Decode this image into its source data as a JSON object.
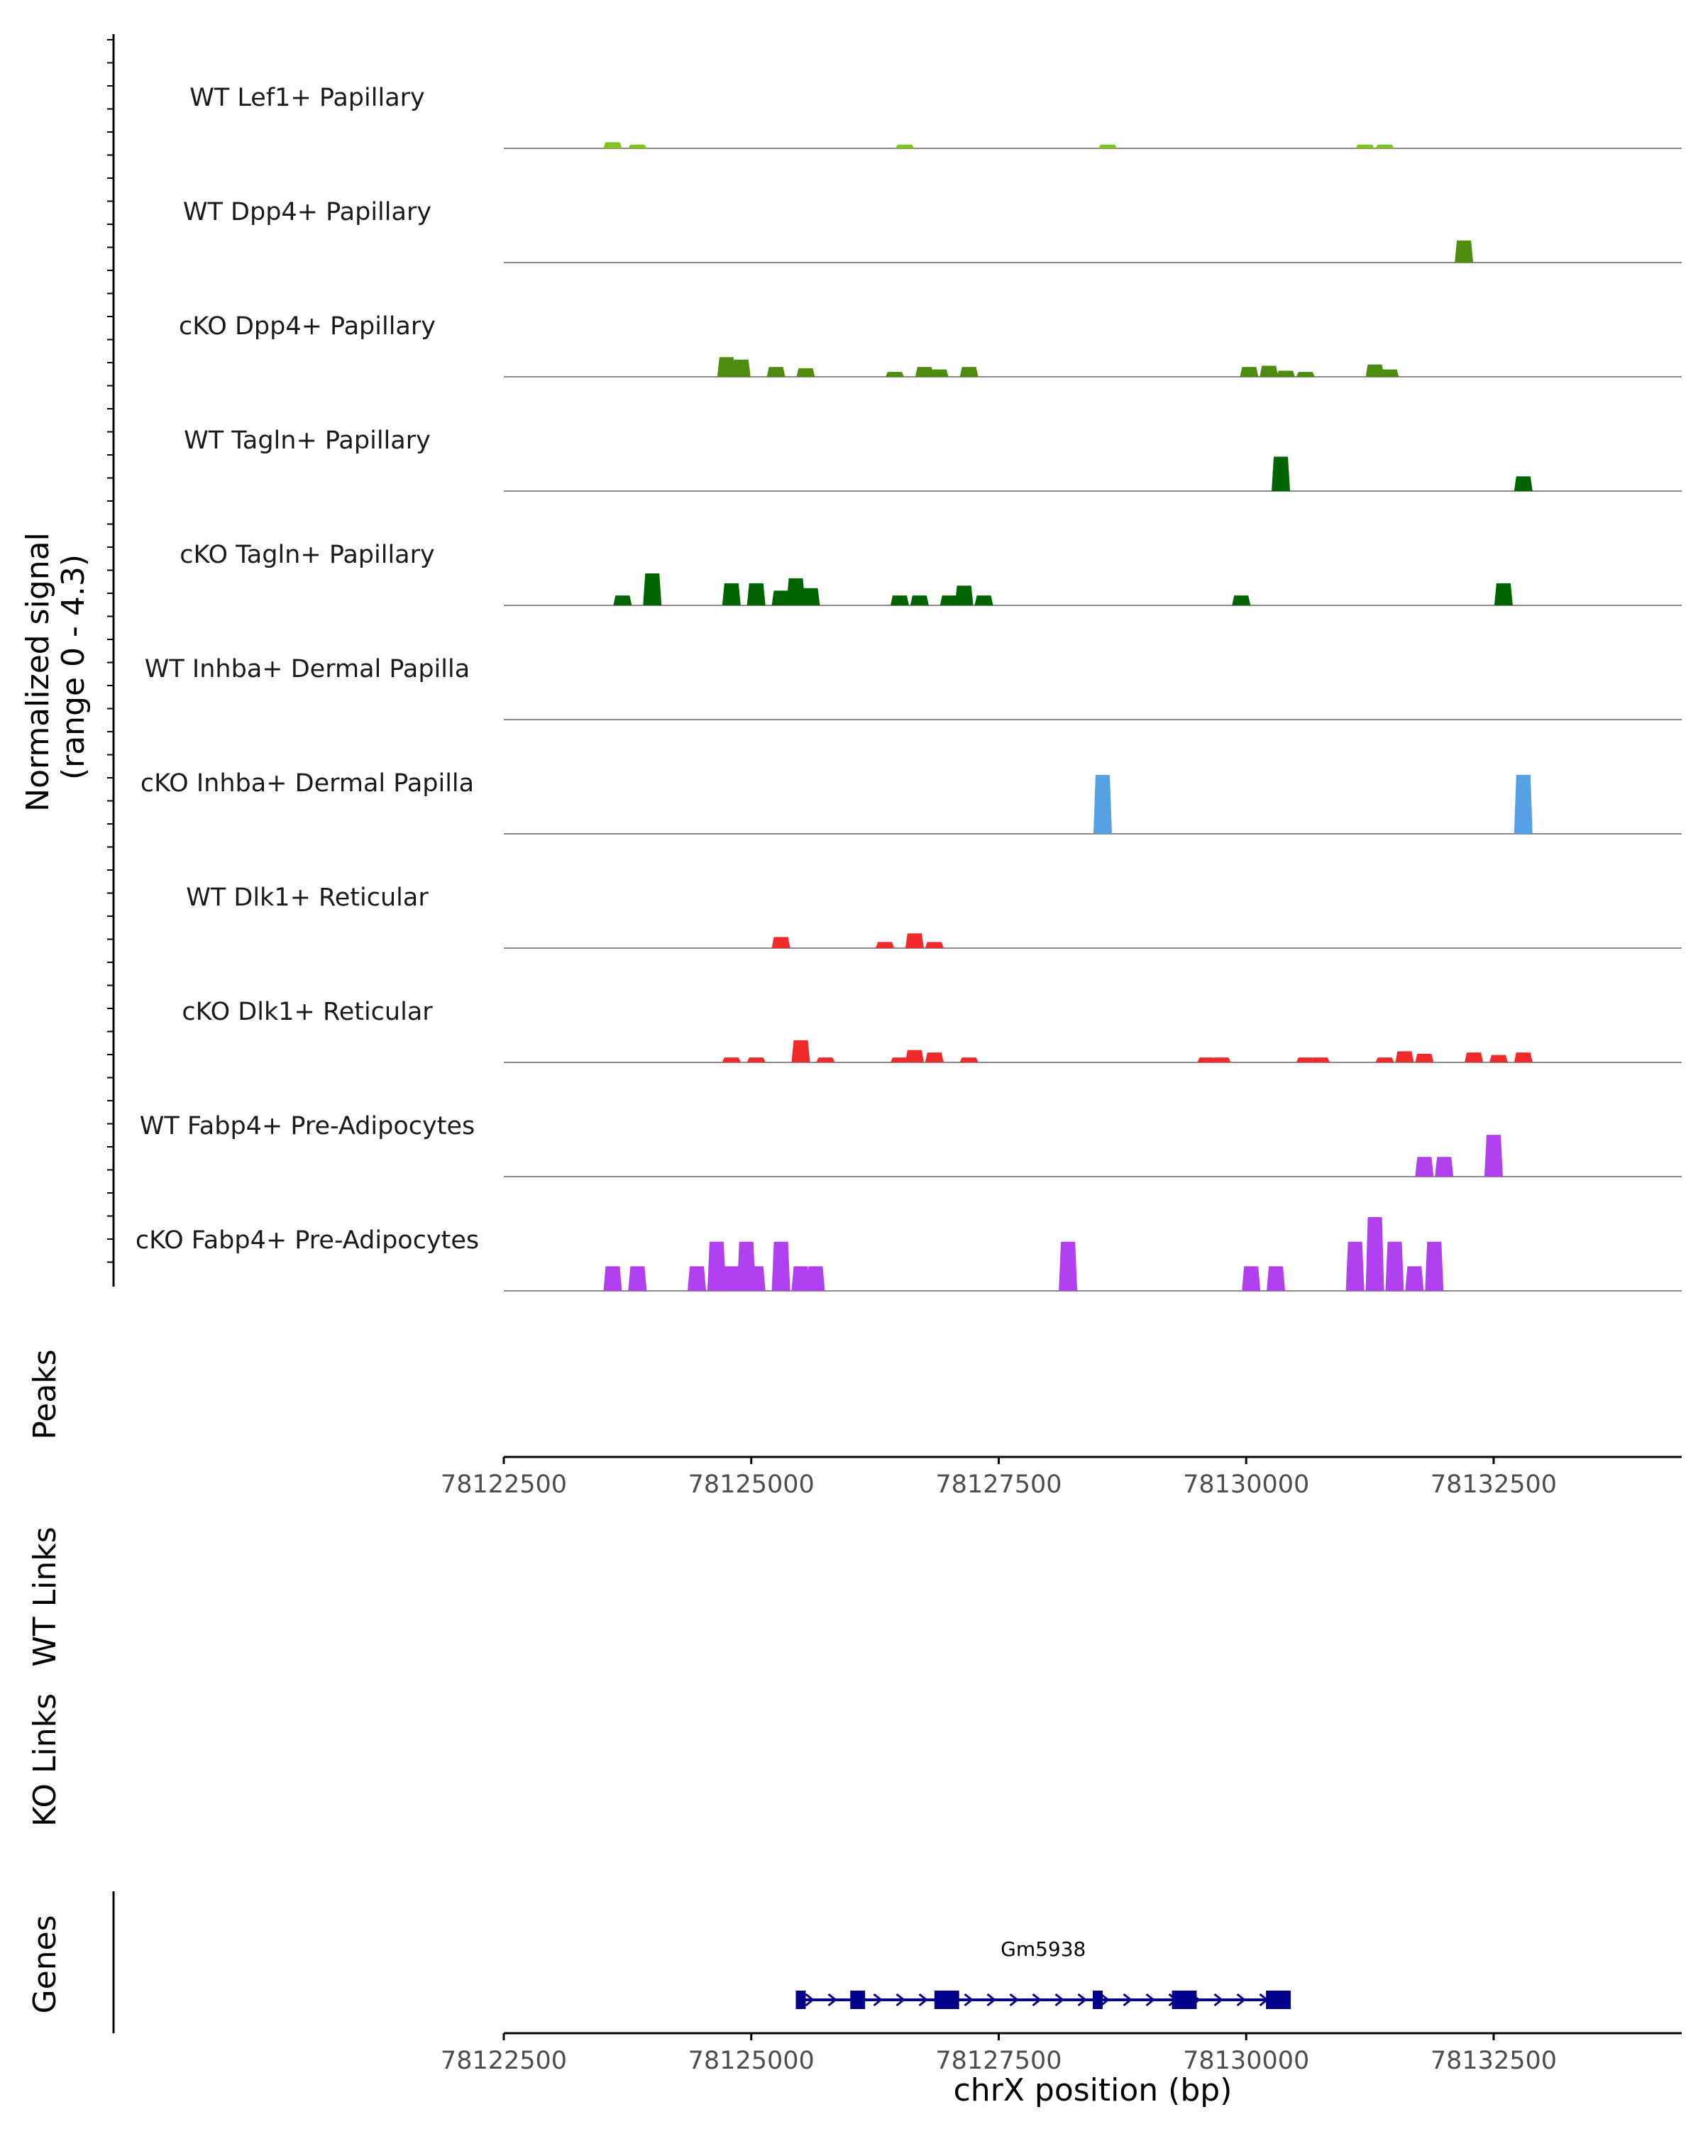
{
  "chart_data": {
    "type": "area",
    "ylabel": "Normalized signal\n(range 0 - 4.3)",
    "y_range": [
      0,
      4.3
    ],
    "xlabel": "chrX position (bp)",
    "x_range": [
      78122500,
      78134400
    ],
    "x_ticks": [
      78122500,
      78125000,
      78127500,
      78130000,
      78132500
    ],
    "x_tick_labels": [
      "78122500",
      "78125000",
      "78127500",
      "78130000",
      "78132500"
    ],
    "tracks": [
      {
        "name": "WT Lef1+ Papillary",
        "color": "#7cc51a",
        "peaks": [
          [
            78123600,
            0.25
          ],
          [
            78123850,
            0.15
          ],
          [
            78126550,
            0.15
          ],
          [
            78128600,
            0.15
          ],
          [
            78131200,
            0.15
          ],
          [
            78131400,
            0.15
          ]
        ]
      },
      {
        "name": "WT Dpp4+ Papillary",
        "color": "#4c8c0f",
        "peaks": [
          [
            78132200,
            0.9
          ]
        ]
      },
      {
        "name": "cKO Dpp4+ Papillary",
        "color": "#4c8c0f",
        "peaks": [
          [
            78124750,
            0.8
          ],
          [
            78124900,
            0.7
          ],
          [
            78125250,
            0.4
          ],
          [
            78125550,
            0.35
          ],
          [
            78126450,
            0.2
          ],
          [
            78126750,
            0.4
          ],
          [
            78126900,
            0.3
          ],
          [
            78127200,
            0.4
          ],
          [
            78130030,
            0.4
          ],
          [
            78130230,
            0.45
          ],
          [
            78130400,
            0.25
          ],
          [
            78130600,
            0.2
          ],
          [
            78131300,
            0.5
          ],
          [
            78131450,
            0.3
          ]
        ]
      },
      {
        "name": "WT Tagln+ Papillary",
        "color": "#006400",
        "peaks": [
          [
            78130350,
            1.4
          ],
          [
            78132800,
            0.6
          ]
        ]
      },
      {
        "name": "cKO Tagln+ Papillary",
        "color": "#006400",
        "peaks": [
          [
            78123700,
            0.4
          ],
          [
            78124000,
            1.3
          ],
          [
            78124800,
            0.9
          ],
          [
            78125050,
            0.9
          ],
          [
            78125300,
            0.6
          ],
          [
            78125450,
            1.1
          ],
          [
            78125600,
            0.7
          ],
          [
            78126500,
            0.4
          ],
          [
            78126700,
            0.4
          ],
          [
            78127000,
            0.4
          ],
          [
            78127150,
            0.8
          ],
          [
            78127350,
            0.4
          ],
          [
            78129950,
            0.4
          ],
          [
            78132600,
            0.9
          ]
        ]
      },
      {
        "name": "WT Inhba+ Dermal Papilla",
        "color": "#56a0e6",
        "peaks": []
      },
      {
        "name": "cKO Inhba+ Dermal Papilla",
        "color": "#56a0e6",
        "peaks": [
          [
            78128550,
            2.4
          ],
          [
            78132800,
            2.4
          ]
        ]
      },
      {
        "name": "WT Dlk1+ Reticular",
        "color": "#f02a2a",
        "peaks": [
          [
            78125300,
            0.45
          ],
          [
            78126350,
            0.25
          ],
          [
            78126650,
            0.6
          ],
          [
            78126850,
            0.25
          ]
        ]
      },
      {
        "name": "cKO Dlk1+ Reticular",
        "color": "#f02a2a",
        "peaks": [
          [
            78124800,
            0.2
          ],
          [
            78125050,
            0.2
          ],
          [
            78125500,
            0.9
          ],
          [
            78125750,
            0.2
          ],
          [
            78126500,
            0.2
          ],
          [
            78126650,
            0.5
          ],
          [
            78126850,
            0.4
          ],
          [
            78127200,
            0.2
          ],
          [
            78129600,
            0.2
          ],
          [
            78129750,
            0.2
          ],
          [
            78130600,
            0.2
          ],
          [
            78130750,
            0.2
          ],
          [
            78131400,
            0.2
          ],
          [
            78131600,
            0.45
          ],
          [
            78131800,
            0.35
          ],
          [
            78132300,
            0.4
          ],
          [
            78132550,
            0.3
          ],
          [
            78132800,
            0.4
          ]
        ]
      },
      {
        "name": "WT Fabp4+ Pre-Adipocytes",
        "color": "#b040f0",
        "peaks": [
          [
            78131800,
            0.8
          ],
          [
            78132000,
            0.8
          ],
          [
            78132500,
            1.7
          ]
        ]
      },
      {
        "name": "cKO Fabp4+ Pre-Adipocytes",
        "color": "#b040f0",
        "peaks": [
          [
            78123600,
            1.0
          ],
          [
            78123850,
            1.0
          ],
          [
            78124450,
            1.0
          ],
          [
            78124650,
            2.0
          ],
          [
            78124800,
            1.0
          ],
          [
            78124950,
            2.0
          ],
          [
            78125050,
            1.0
          ],
          [
            78125300,
            2.0
          ],
          [
            78125500,
            1.0
          ],
          [
            78125650,
            1.0
          ],
          [
            78128200,
            2.0
          ],
          [
            78130050,
            1.0
          ],
          [
            78130300,
            1.0
          ],
          [
            78131100,
            2.0
          ],
          [
            78131300,
            3.0
          ],
          [
            78131500,
            2.0
          ],
          [
            78131700,
            1.0
          ],
          [
            78131900,
            2.0
          ]
        ]
      }
    ],
    "panels": [
      "Peaks",
      "WT Links",
      "KO Links",
      "Genes"
    ],
    "genes": [
      {
        "name": "Gm5938",
        "start": 78125450,
        "end": 78130450,
        "strand": "+",
        "exons": [
          [
            78125450,
            78125550
          ],
          [
            78126000,
            78126150
          ],
          [
            78126850,
            78127100
          ],
          [
            78128450,
            78128550
          ],
          [
            78129250,
            78129500
          ],
          [
            78130200,
            78130450
          ]
        ]
      }
    ]
  }
}
